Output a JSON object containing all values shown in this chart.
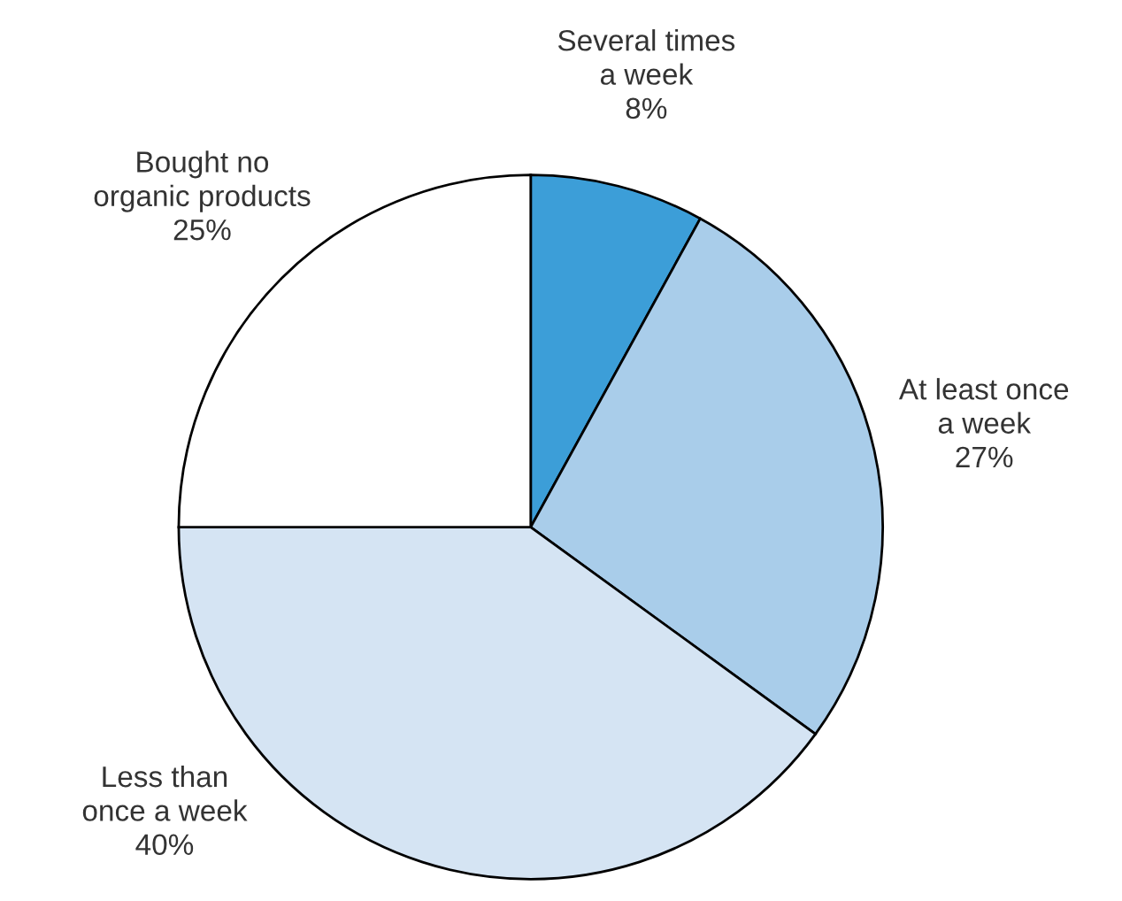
{
  "chart_data": {
    "type": "pie",
    "categories": [
      "Several times\na week",
      "At least once\na week",
      "Less than\nonce a week",
      "Bought no\norganic products"
    ],
    "values": [
      8,
      27,
      40,
      25
    ],
    "value_labels": [
      "8%",
      "27%",
      "40%",
      "25%"
    ],
    "colors": [
      "#3c9ed8",
      "#a9cdea",
      "#d5e4f3",
      "#ffffff"
    ]
  }
}
